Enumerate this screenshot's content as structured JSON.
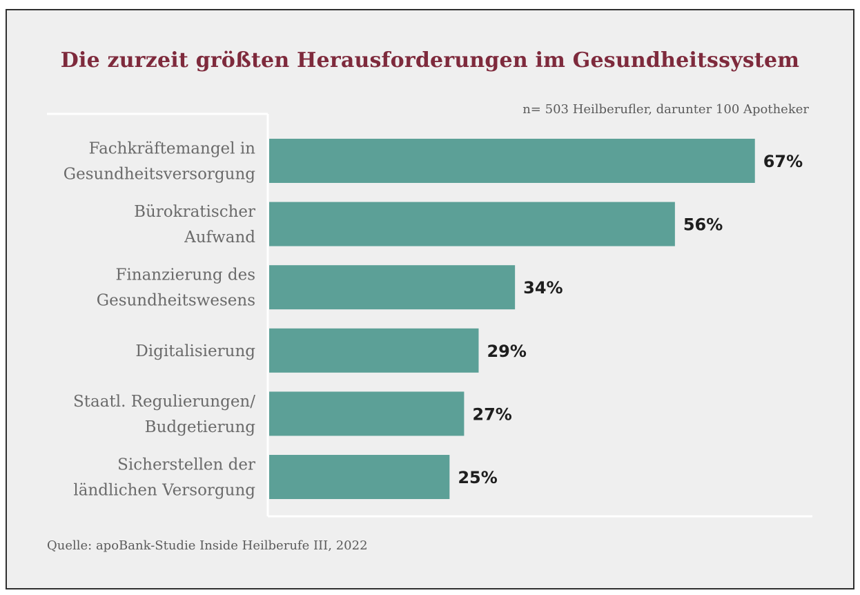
{
  "chart_data": {
    "type": "bar",
    "orientation": "horizontal",
    "title": "Die zurzeit größten Herausforderungen im Gesundheitssystem",
    "subtitle": "n= 503 Heilberufler, darunter 100 Apotheker",
    "source": "Quelle: apoBank-Studie Inside Heilberufe III, 2022",
    "categories": [
      [
        "Fachkräftemangel in",
        "Gesundheitsversorgung"
      ],
      [
        "Bürokratischer",
        "Aufwand"
      ],
      [
        "Finanzierung des",
        "Gesundheitswesens"
      ],
      [
        "Digitalisierung"
      ],
      [
        "Staatl. Regulierungen/",
        "Budgetierung"
      ],
      [
        "Sicherstellen der",
        "ländlichen Versorgung"
      ]
    ],
    "values": [
      67,
      56,
      34,
      29,
      27,
      25
    ],
    "value_labels": [
      "67%",
      "56%",
      "34%",
      "29%",
      "27%",
      "25%"
    ],
    "unit": "%",
    "xlim": [
      0,
      75
    ],
    "grid": false,
    "legend": "none",
    "colors": {
      "bar": "#5ca097",
      "title": "#7e2a3c",
      "axis": "#ffffff",
      "background": "#efefef",
      "frame": "#2e2e2e"
    }
  }
}
